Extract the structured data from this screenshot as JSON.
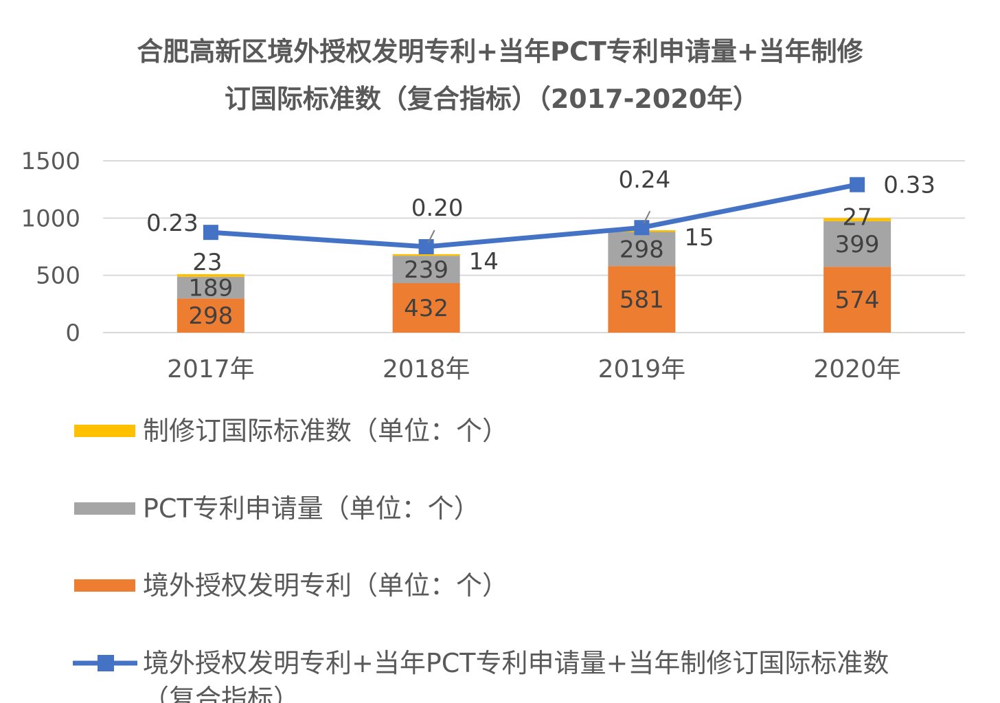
{
  "chart_data": {
    "type": "bar",
    "title_lines": [
      "合肥高新区境外授权发明专利+当年PCT专利申请量+当年制修",
      "订国际标准数（复合指标）（2017-2020年）"
    ],
    "categories": [
      "2017年",
      "2018年",
      "2019年",
      "2020年"
    ],
    "ylim": [
      0,
      1500
    ],
    "yticks": [
      0,
      500,
      1000,
      1500
    ],
    "grid": true,
    "stacked": true,
    "legend_position": "bottom",
    "series": [
      {
        "name": "境外授权发明专利（单位：个）",
        "kind": "bar",
        "color": "#ED7D31",
        "values": [
          298,
          432,
          581,
          574
        ],
        "labels": [
          "298",
          "432",
          "581",
          "574"
        ]
      },
      {
        "name": "PCT专利申请量（单位：个）",
        "kind": "bar",
        "color": "#A5A5A5",
        "values": [
          189,
          239,
          298,
          399
        ],
        "labels": [
          "189",
          "239",
          "298",
          "399"
        ]
      },
      {
        "name": "制修订国际标准数（单位：个）",
        "kind": "bar",
        "color": "#FFC000",
        "values": [
          23,
          14,
          15,
          27
        ],
        "labels": [
          "23",
          "14",
          "15",
          "27"
        ]
      },
      {
        "name": "境外授权发明专利+当年PCT专利申请量+当年制修订国际标准数（复合指标）",
        "kind": "line",
        "color": "#4472C4",
        "values": [
          0.23,
          0.2,
          0.24,
          0.33
        ],
        "labels": [
          "0.23",
          "0.20",
          "0.24",
          "0.33"
        ],
        "legend_wrap": "（复合指标）"
      }
    ]
  }
}
